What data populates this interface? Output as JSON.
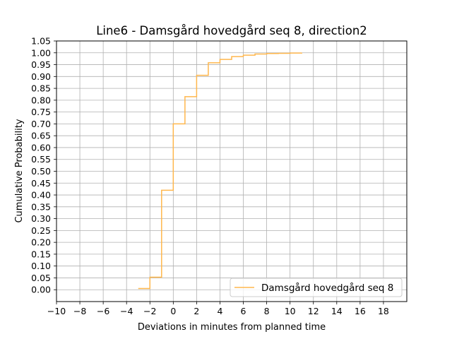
{
  "chart_data": {
    "type": "line",
    "step": "post",
    "title": "Line6 - Damsgård hovedgård seq 8, direction2",
    "xlabel": "Deviations in minutes from planned time",
    "ylabel": "Cumulative Probability",
    "xlim": [
      -10,
      20
    ],
    "ylim": [
      -0.05,
      1.05
    ],
    "xticks": [
      -10,
      -8,
      -6,
      -4,
      -2,
      0,
      2,
      4,
      6,
      8,
      10,
      12,
      14,
      16,
      18
    ],
    "xtick_labels": [
      "−10",
      "−8",
      "−6",
      "−4",
      "−2",
      "0",
      "2",
      "4",
      "6",
      "8",
      "10",
      "12",
      "14",
      "16",
      "18"
    ],
    "yticks": [
      0,
      0.05,
      0.1,
      0.15,
      0.2,
      0.25,
      0.3,
      0.35,
      0.4,
      0.45,
      0.5,
      0.55,
      0.6,
      0.65,
      0.7,
      0.75,
      0.8,
      0.85,
      0.9,
      0.95,
      1.0,
      1.05
    ],
    "ytick_labels": [
      "0.00",
      "0.05",
      "0.10",
      "0.15",
      "0.20",
      "0.25",
      "0.30",
      "0.35",
      "0.40",
      "0.45",
      "0.50",
      "0.55",
      "0.60",
      "0.65",
      "0.70",
      "0.75",
      "0.80",
      "0.85",
      "0.90",
      "0.95",
      "1.00",
      "1.05"
    ],
    "grid": true,
    "legend_position": "bottom-right",
    "series": [
      {
        "name": "Damsgård hovedgård seq 8",
        "color": "#ffb74d",
        "x": [
          -3,
          -2,
          -1,
          0,
          1,
          2,
          3,
          4,
          5,
          6,
          7,
          8,
          9,
          10,
          11
        ],
        "y": [
          0.005,
          0.053,
          0.42,
          0.7,
          0.815,
          0.905,
          0.958,
          0.972,
          0.984,
          0.99,
          0.995,
          0.997,
          0.998,
          0.999,
          1.0
        ]
      }
    ]
  }
}
